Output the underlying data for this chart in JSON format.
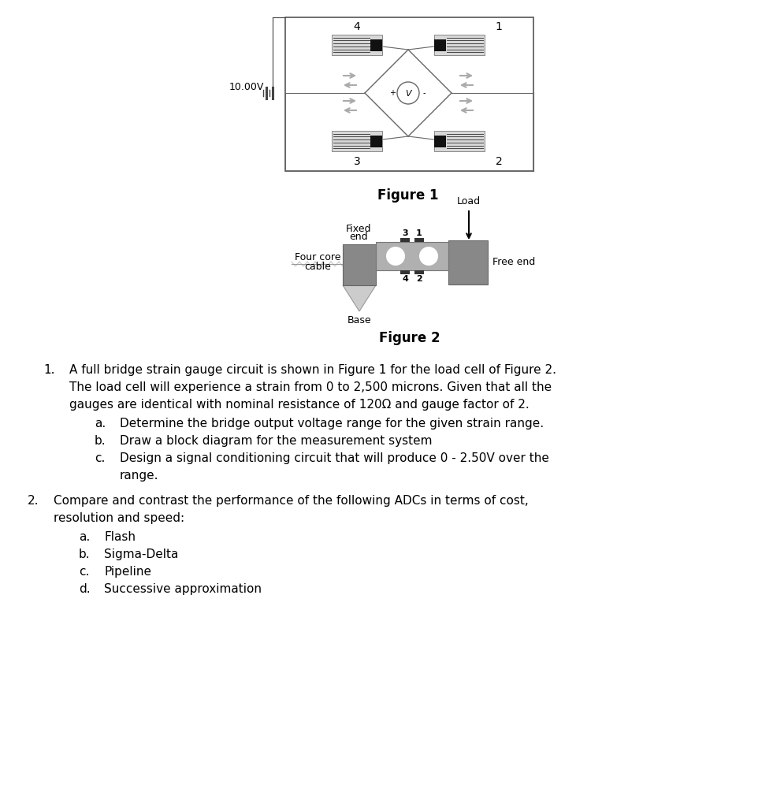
{
  "fig_width": 9.81,
  "fig_height": 10.24,
  "background_color": "#ffffff",
  "figure1_caption": "Figure 1",
  "figure2_caption": "Figure 2",
  "voltage_label": "10.00V",
  "question1_lines": [
    "A full bridge strain gauge circuit is shown in Figure 1 for the load cell of Figure 2.",
    "The load cell will experience a strain from 0 to 2,500 microns. Given that all the",
    "gauges are identical with nominal resistance of 120Ω and gauge factor of 2."
  ],
  "sub1_letters": [
    "a.",
    "b.",
    "c."
  ],
  "sub1_texts": [
    "Determine the bridge output voltage range for the given strain range.",
    "Draw a block diagram for the measurement system",
    "Design a signal conditioning circuit that will produce 0 - 2.50V over the"
  ],
  "sub1c_cont": "range.",
  "question2_lines": [
    "Compare and contrast the performance of the following ADCs in terms of cost,",
    "resolution and speed:"
  ],
  "sub2_letters": [
    "a.",
    "b.",
    "c.",
    "d."
  ],
  "sub2_texts": [
    "Flash",
    "Sigma-Delta",
    "Pipeline",
    "Successive approximation"
  ]
}
